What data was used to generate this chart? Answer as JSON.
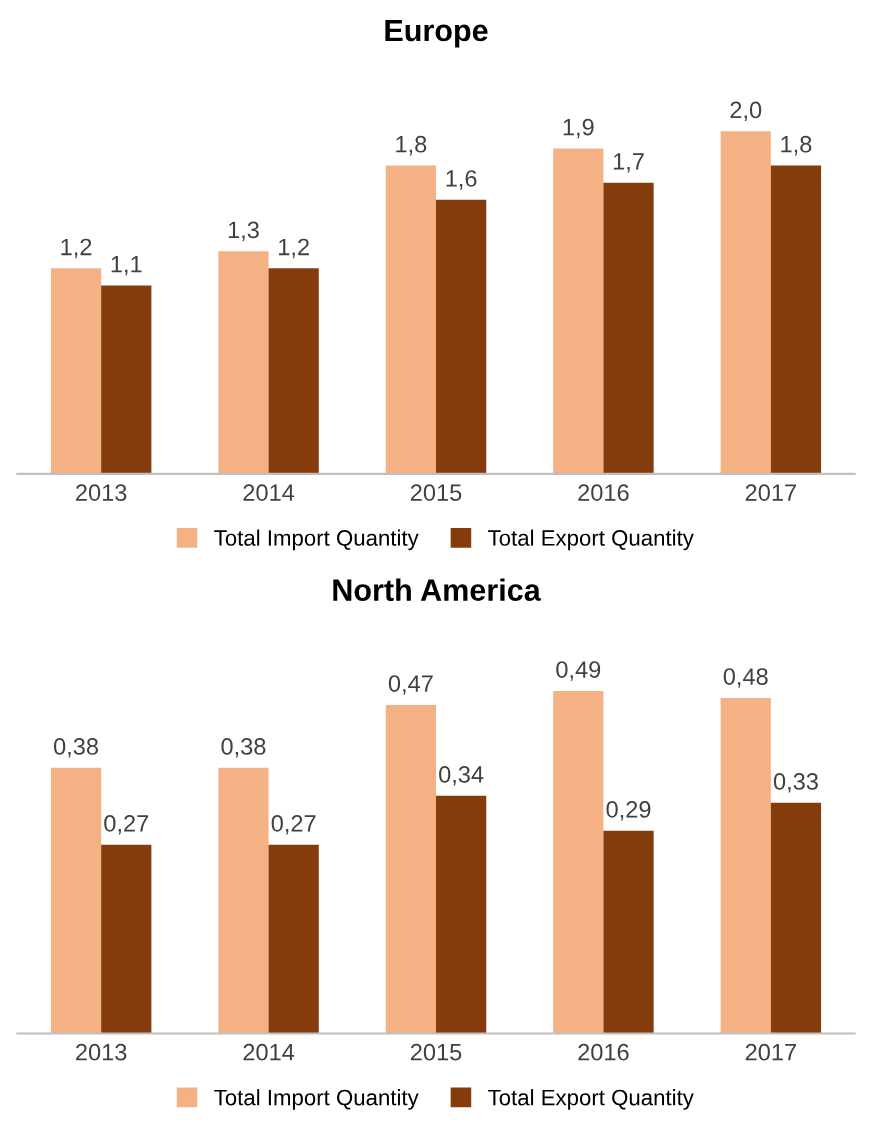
{
  "chart_data": [
    {
      "type": "bar",
      "title": "Europe",
      "categories": [
        "2013",
        "2014",
        "2015",
        "2016",
        "2017"
      ],
      "legend": "bottom",
      "series": [
        {
          "name": "Total Import Quantity",
          "color": "#f4b183",
          "values": [
            1.2,
            1.3,
            1.8,
            1.9,
            2.0
          ],
          "value_labels": [
            "1,2",
            "1,3",
            "1,8",
            "1,9",
            "2,0"
          ]
        },
        {
          "name": "Total Export Quantity",
          "color": "#843c0c",
          "values": [
            1.1,
            1.2,
            1.6,
            1.7,
            1.8
          ],
          "value_labels": [
            "1,1",
            "1,2",
            "1,6",
            "1,7",
            "1,8"
          ]
        }
      ]
    },
    {
      "type": "bar",
      "title": "North America",
      "categories": [
        "2013",
        "2014",
        "2015",
        "2016",
        "2017"
      ],
      "legend": "bottom",
      "series": [
        {
          "name": "Total Import Quantity",
          "color": "#f4b183",
          "values": [
            0.38,
            0.38,
            0.47,
            0.49,
            0.48
          ],
          "value_labels": [
            "0,38",
            "0,38",
            "0,47",
            "0,49",
            "0,48"
          ]
        },
        {
          "name": "Total Export Quantity",
          "color": "#843c0c",
          "values": [
            0.27,
            0.27,
            0.34,
            0.29,
            0.33
          ],
          "value_labels": [
            "0,27",
            "0,27",
            "0,34",
            "0,29",
            "0,33"
          ]
        }
      ]
    }
  ]
}
